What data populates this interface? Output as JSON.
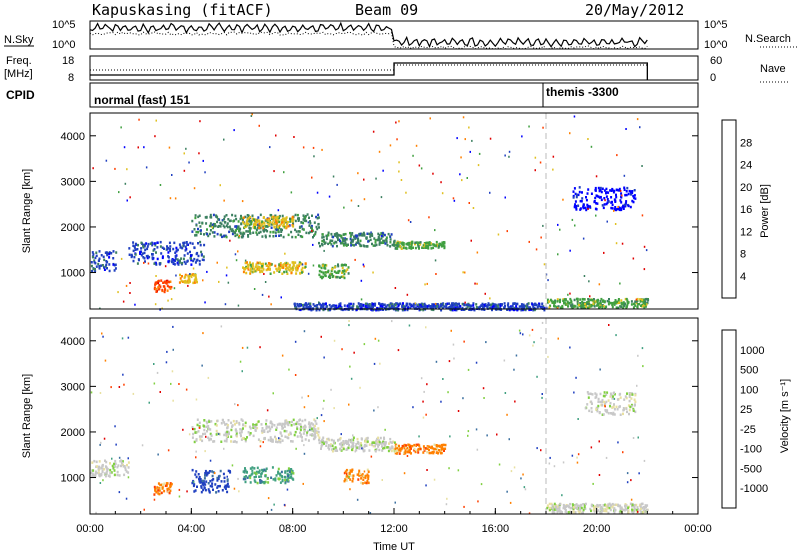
{
  "header": {
    "station": "Kapuskasing (fitACF)",
    "beam": "Beam 09",
    "date": "20/May/2012"
  },
  "strips": {
    "nsky_label": "N.Sky",
    "nsky_ticks": [
      "10^5",
      "10^0"
    ],
    "nsearch_label": "N.Search",
    "freq_label": "Freq.",
    "freq_unit": "[MHz]",
    "freq_ticks": [
      "18",
      "8"
    ],
    "nave_label": "Nave",
    "nave_ticks": [
      "60",
      "0"
    ],
    "cpid_label": "CPID",
    "cpid_mode1": "normal (fast) 151",
    "cpid_mode2": "themis -3300"
  },
  "colors": {
    "power": [
      "#0000ff",
      "#2040c0",
      "#3c8060",
      "#40a040",
      "#e0c020",
      "#ff8000",
      "#ff4000",
      "#e00000"
    ],
    "velocity": [
      "#2040c0",
      "#3c70a0",
      "#40a080",
      "#80d040",
      "#c8c8c8",
      "#e8e0a0",
      "#ff8000",
      "#ff4000",
      "#e00000"
    ]
  },
  "chart_data": [
    {
      "type": "heatmap",
      "panel": "power",
      "ylabel": "Slant Range [km]",
      "xlim": [
        "00:00",
        "24:00"
      ],
      "ylim": [
        200,
        4500
      ],
      "y_ticks": [
        1000,
        2000,
        3000,
        4000
      ],
      "colorbar_label": "Power [dB]",
      "colorbar_ticks": [
        "4",
        "8",
        "12",
        "16",
        "20",
        "24",
        "28"
      ],
      "colorbar_range": [
        0,
        32
      ],
      "bands": [
        {
          "t0": 0.0,
          "t1": 1.0,
          "r0": 1050,
          "r1": 1500,
          "level": 1
        },
        {
          "t0": 1.5,
          "t1": 4.5,
          "r0": 1200,
          "r1": 1700,
          "level": 1
        },
        {
          "t0": 4.0,
          "t1": 9.0,
          "r0": 1800,
          "r1": 2300,
          "level": 2
        },
        {
          "t0": 6.0,
          "t1": 8.0,
          "r0": 2000,
          "r1": 2250,
          "level": 4
        },
        {
          "t0": 9.0,
          "t1": 12.0,
          "r0": 1600,
          "r1": 1900,
          "level": 2
        },
        {
          "t0": 12.0,
          "t1": 14.0,
          "r0": 1550,
          "r1": 1700,
          "level": 3
        },
        {
          "t0": 2.5,
          "t1": 3.2,
          "r0": 600,
          "r1": 850,
          "level": 6
        },
        {
          "t0": 3.5,
          "t1": 4.2,
          "r0": 800,
          "r1": 1000,
          "level": 4
        },
        {
          "t0": 6.0,
          "t1": 8.5,
          "r0": 1000,
          "r1": 1250,
          "level": 4
        },
        {
          "t0": 9.0,
          "t1": 10.2,
          "r0": 900,
          "r1": 1200,
          "level": 3
        },
        {
          "t0": 19.0,
          "t1": 21.5,
          "r0": 2400,
          "r1": 2900,
          "level": 0
        },
        {
          "t0": 18.0,
          "t1": 22.0,
          "r0": 250,
          "r1": 450,
          "level": 3
        },
        {
          "t0": 8.0,
          "t1": 18.0,
          "r0": 200,
          "r1": 350,
          "level": 1
        }
      ]
    },
    {
      "type": "heatmap",
      "panel": "velocity",
      "xlabel": "Time UT",
      "ylabel": "Slant Range [km]",
      "xlim": [
        "00:00",
        "24:00"
      ],
      "x_ticks": [
        "00:00",
        "04:00",
        "08:00",
        "12:00",
        "16:00",
        "20:00",
        "00:00"
      ],
      "ylim": [
        200,
        4500
      ],
      "y_ticks": [
        1000,
        2000,
        3000,
        4000
      ],
      "colorbar_label": "Velocity [m s⁻¹]",
      "colorbar_ticks": [
        "1000",
        "500",
        "100",
        "25",
        "-25",
        "-100",
        "-500",
        "-1000"
      ],
      "bands": [
        {
          "t0": 0.0,
          "t1": 1.5,
          "r0": 1050,
          "r1": 1400,
          "level": 4
        },
        {
          "t0": 4.0,
          "t1": 9.0,
          "r0": 1800,
          "r1": 2300,
          "level": 4
        },
        {
          "t0": 9.0,
          "t1": 12.0,
          "r0": 1600,
          "r1": 1900,
          "level": 4
        },
        {
          "t0": 12.0,
          "t1": 14.0,
          "r0": 1550,
          "r1": 1750,
          "level": 6
        },
        {
          "t0": 10.0,
          "t1": 11.0,
          "r0": 900,
          "r1": 1200,
          "level": 6
        },
        {
          "t0": 2.5,
          "t1": 3.2,
          "r0": 650,
          "r1": 900,
          "level": 6
        },
        {
          "t0": 4.0,
          "t1": 5.5,
          "r0": 700,
          "r1": 1200,
          "level": 0
        },
        {
          "t0": 6.0,
          "t1": 8.0,
          "r0": 900,
          "r1": 1250,
          "level": 2
        },
        {
          "t0": 19.5,
          "t1": 21.5,
          "r0": 2400,
          "r1": 2900,
          "level": 4
        },
        {
          "t0": 18.0,
          "t1": 22.0,
          "r0": 250,
          "r1": 450,
          "level": 4
        }
      ]
    }
  ]
}
